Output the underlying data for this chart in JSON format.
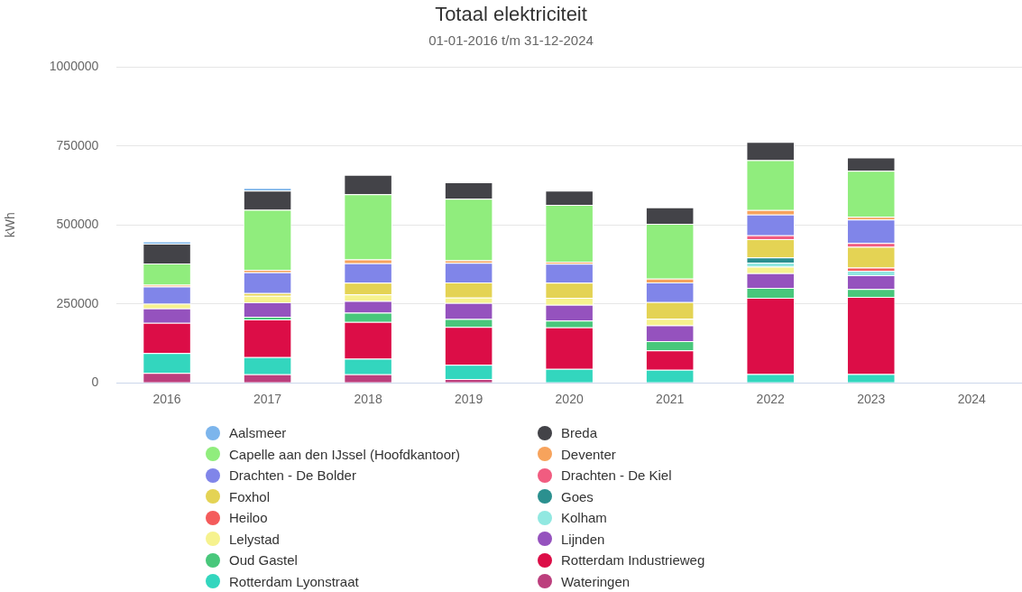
{
  "chart_data": {
    "type": "bar",
    "title": "Totaal elektriciteit",
    "subtitle": "01-01-2016 t/m 31-12-2024",
    "ylabel": "kWh",
    "categories": [
      "2016",
      "2017",
      "2018",
      "2019",
      "2020",
      "2021",
      "2022",
      "2023",
      "2024"
    ],
    "stacked": true,
    "ylim": [
      0,
      1000000
    ],
    "yticks": [
      0,
      250000,
      500000,
      750000,
      1000000
    ],
    "grid": "y",
    "legend": "bottom",
    "series": [
      {
        "name": "Wateringen",
        "color": "#bc3f7d",
        "values": [
          31000,
          27000,
          27000,
          12000,
          0,
          0,
          0,
          0,
          null
        ]
      },
      {
        "name": "Rotterdam Lyonstraat",
        "color": "#33d6be",
        "values": [
          63000,
          54000,
          49000,
          45000,
          44000,
          41000,
          28000,
          28000,
          null
        ]
      },
      {
        "name": "Rotterdam Industrieweg",
        "color": "#dc0d47",
        "values": [
          96000,
          120000,
          117000,
          120000,
          132000,
          62000,
          241000,
          244000,
          null
        ]
      },
      {
        "name": "Oud Gastel",
        "color": "#48c77b",
        "values": [
          0,
          8000,
          29000,
          25000,
          21000,
          29000,
          32000,
          25000,
          null
        ]
      },
      {
        "name": "Lijnden",
        "color": "#9552be",
        "values": [
          46000,
          46000,
          37000,
          51000,
          50000,
          50000,
          46000,
          44000,
          null
        ]
      },
      {
        "name": "Lelystad",
        "color": "#f6f28e",
        "values": [
          15000,
          21000,
          21000,
          17000,
          22000,
          21000,
          21000,
          0,
          null
        ]
      },
      {
        "name": "Kolham",
        "color": "#91e8e1",
        "values": [
          0,
          0,
          0,
          0,
          0,
          0,
          13000,
          14000,
          null
        ]
      },
      {
        "name": "Heiloo",
        "color": "#f45b5b",
        "values": [
          0,
          0,
          0,
          0,
          0,
          0,
          0,
          10000,
          null
        ]
      },
      {
        "name": "Goes",
        "color": "#2b908f",
        "values": [
          0,
          0,
          0,
          0,
          0,
          0,
          16000,
          0,
          null
        ]
      },
      {
        "name": "Foxhol",
        "color": "#e4d354",
        "values": [
          0,
          8000,
          37000,
          48000,
          48000,
          53000,
          58000,
          66000,
          null
        ]
      },
      {
        "name": "Drachten - De Kiel",
        "color": "#f15c80",
        "values": [
          0,
          0,
          0,
          0,
          0,
          0,
          12000,
          12000,
          null
        ]
      },
      {
        "name": "Drachten - De Bolder",
        "color": "#8085e9",
        "values": [
          54000,
          66000,
          62000,
          62000,
          60000,
          62000,
          66000,
          74000,
          null
        ]
      },
      {
        "name": "Deventer",
        "color": "#f7a35c",
        "values": [
          6000,
          8000,
          12000,
          8000,
          7000,
          12000,
          14000,
          9000,
          null
        ]
      },
      {
        "name": "Capelle aan den IJssel (Hoofdkantoor)",
        "color": "#90ed7d",
        "values": [
          67000,
          190000,
          206000,
          195000,
          180000,
          174000,
          158000,
          146000,
          null
        ]
      },
      {
        "name": "Breda",
        "color": "#434348",
        "values": [
          63000,
          61000,
          62000,
          52000,
          45000,
          52000,
          58000,
          42000,
          null
        ]
      },
      {
        "name": "Aalsmeer",
        "color": "#7cb5ec",
        "values": [
          7000,
          8000,
          0,
          0,
          0,
          0,
          0,
          0,
          null
        ]
      }
    ]
  }
}
